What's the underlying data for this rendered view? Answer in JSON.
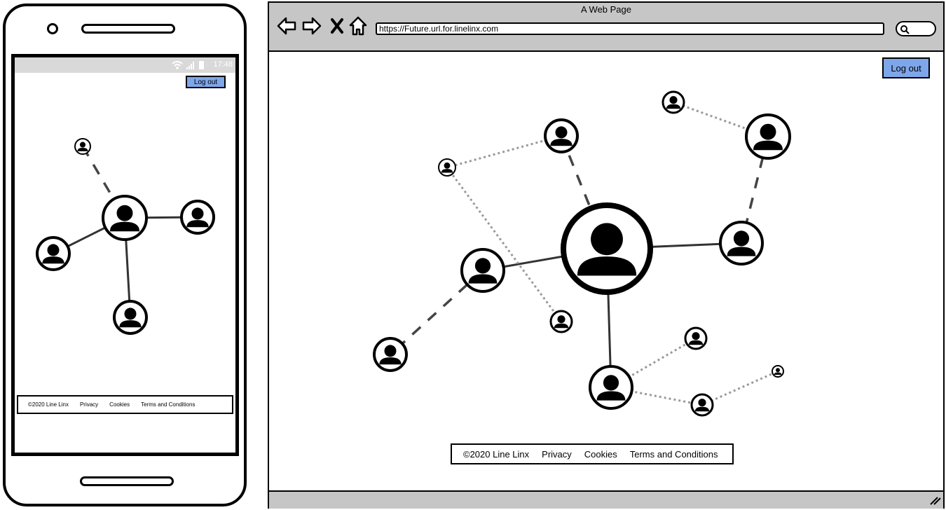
{
  "phone": {
    "status_time": "17:48",
    "logout_label": "Log out",
    "footer": {
      "copyright": "©2020 Line Linx",
      "privacy": "Privacy",
      "cookies": "Cookies",
      "terms": "Terms and Conditions"
    }
  },
  "browser": {
    "title": "A Web Page",
    "url": "https://Future.url.for.linelinx.com",
    "logout_label": "Log out",
    "footer": {
      "copyright": "©2020 Line Linx",
      "privacy": "Privacy",
      "cookies": "Cookies",
      "terms": "Terms and Conditions"
    }
  },
  "icons": {
    "back": "arrow-left-icon",
    "forward": "arrow-right-icon",
    "stop": "close-icon",
    "home": "home-icon",
    "search": "search-icon",
    "user": "user-avatar-icon"
  },
  "colors": {
    "button": "#7ea6ea",
    "chrome": "#c6c6c6",
    "status_bar": "#d9d9d9"
  }
}
